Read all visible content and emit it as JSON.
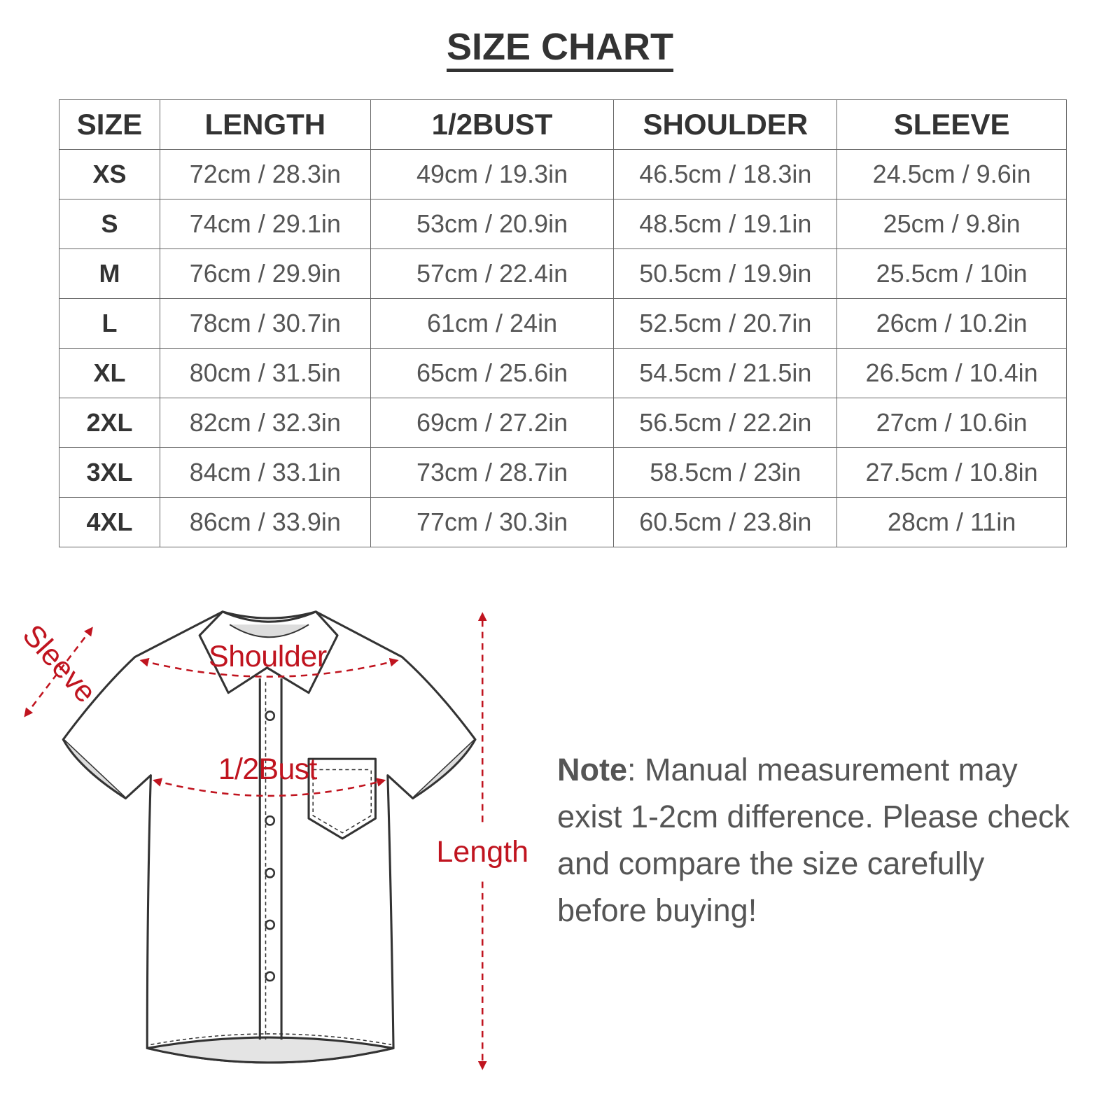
{
  "title": "SIZE CHART",
  "table": {
    "headers": [
      "SIZE",
      "LENGTH",
      "1/2BUST",
      "SHOULDER",
      "SLEEVE"
    ],
    "rows": [
      [
        "XS",
        "72cm / 28.3in",
        "49cm / 19.3in",
        "46.5cm / 18.3in",
        "24.5cm / 9.6in"
      ],
      [
        "S",
        "74cm / 29.1in",
        "53cm / 20.9in",
        "48.5cm / 19.1in",
        "25cm / 9.8in"
      ],
      [
        "M",
        "76cm / 29.9in",
        "57cm / 22.4in",
        "50.5cm / 19.9in",
        "25.5cm / 10in"
      ],
      [
        "L",
        "78cm / 30.7in",
        "61cm / 24in",
        "52.5cm / 20.7in",
        "26cm / 10.2in"
      ],
      [
        "XL",
        "80cm / 31.5in",
        "65cm / 25.6in",
        "54.5cm / 21.5in",
        "26.5cm / 10.4in"
      ],
      [
        "2XL",
        "82cm / 32.3in",
        "69cm / 27.2in",
        "56.5cm / 22.2in",
        "27cm / 10.6in"
      ],
      [
        "3XL",
        "84cm / 33.1in",
        "73cm / 28.7in",
        "58.5cm / 23in",
        "27.5cm / 10.8in"
      ],
      [
        "4XL",
        "86cm / 33.9in",
        "77cm / 30.3in",
        "60.5cm / 23.8in",
        "28cm / 11in"
      ]
    ]
  },
  "diagram": {
    "labels": {
      "sleeve": "Sleeve",
      "shoulder": "Shoulder",
      "bust": "1/2Bust",
      "length": "Length"
    },
    "accent_color": "#c0141f",
    "illustration": "short-sleeve-button-shirt"
  },
  "note": {
    "label": "Note",
    "text": ": Manual measurement may exist 1-2cm difference. Please check and compare the size carefully before buying!"
  }
}
